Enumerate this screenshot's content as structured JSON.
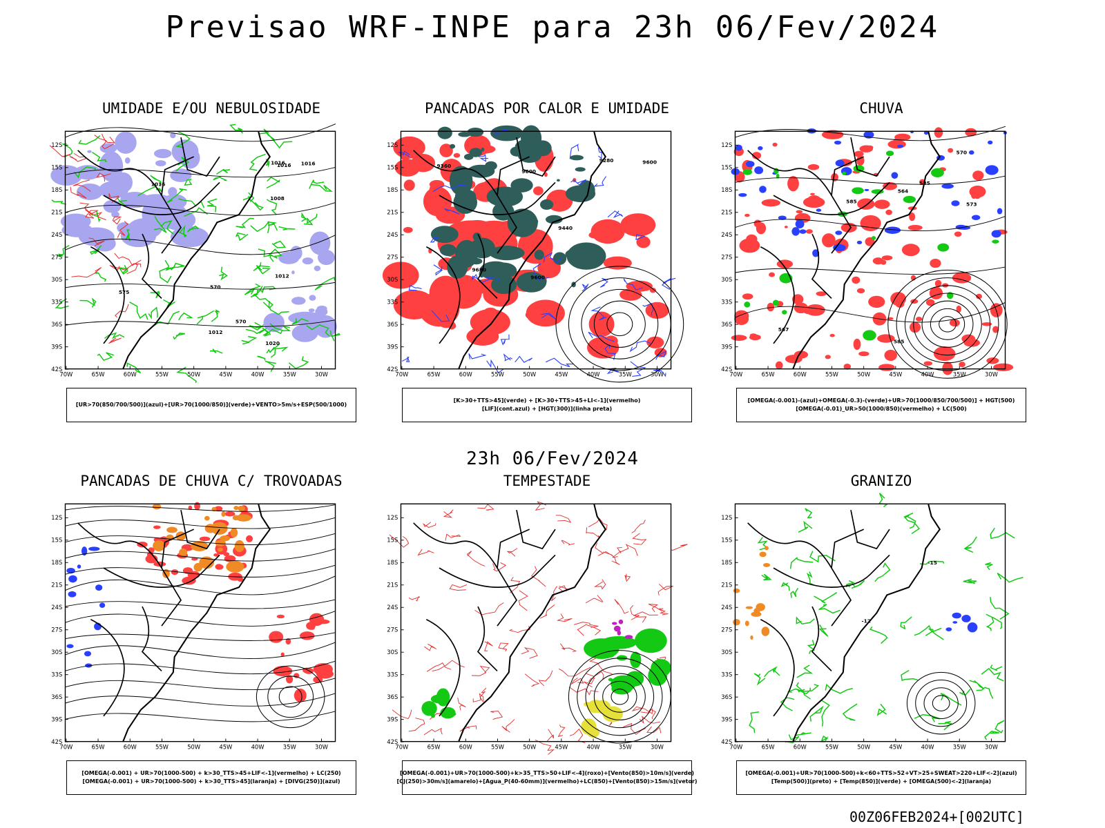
{
  "title": "Previsao WRF-INPE  para 23h 06/Fev/2024",
  "subtitle": "23h 06/Fev/2024",
  "footer": "00Z06FEB2024+[002UTC]",
  "axes": {
    "lat_ticks": [
      "12S",
      "15S",
      "18S",
      "21S",
      "24S",
      "27S",
      "30S",
      "33S",
      "36S",
      "39S",
      "42S"
    ],
    "lon_ticks": [
      "70W",
      "65W",
      "60W",
      "55W",
      "50W",
      "45W",
      "40W",
      "35W",
      "30W"
    ]
  },
  "colors": {
    "blue_fill": "#a9a6f0",
    "green": "#13c913",
    "red": "#ff4040",
    "dark_teal": "#2f5e5a",
    "blue": "#2a40ff",
    "orange": "#f08a24",
    "yellow": "#e6e03a"
  },
  "panels": [
    {
      "title": "UMIDADE E/OU NEBULOSIDADE",
      "legend": [
        "[UR>70(850/700/500)](azul)+[UR>70(1000/850)](verde)+VENTO>5m/s+ESP(500/1000)"
      ],
      "contour_labels": [
        "1016",
        "1016",
        "1016",
        "1012",
        "1008",
        "1012",
        "1016",
        "1020",
        "570",
        "575",
        "570"
      ]
    },
    {
      "title": "PANCADAS POR CALOR E UMIDADE",
      "legend": [
        "[K>30+TTS>45](verde)  +  [K>30+TTS>45+LI<-1](vermelho)",
        "[LIF](cont.azul)  +  [HGT(300)](linha preta)"
      ],
      "contour_labels": [
        "9680",
        "9600",
        "9600",
        "9440",
        "9360",
        "9280",
        "9600"
      ]
    },
    {
      "title": "CHUVA",
      "legend": [
        "[OMEGA(-0.001)-(azul)+OMEGA(-0.3)-(verde)+UR>70(1000/850/700/500)]  +  HGT(500)",
        "[OMEGA(-0.01)_UR>50(1000/850)(vermelho)  +  LC(500)"
      ],
      "contour_labels": [
        "585",
        "585",
        "573",
        "570",
        "567",
        "564",
        "585"
      ]
    },
    {
      "title": "PANCADAS DE CHUVA C/ TROVOADAS",
      "legend": [
        "[OMEGA(-0.001)  +  UR>70(1000-500)  +  k>30_TTS>45+LIF<-1](vermelho)  +  LC(250)",
        "[OMEGA(-0.001)  +  UR>70(1000-500)  +  k>30_TTS>45](laranja)  +  [DIVG(250)](azul)"
      ],
      "contour_labels": []
    },
    {
      "title": "TEMPESTADE",
      "legend": [
        "[OMEGA(-0.001)+UR>70(1000-500)+k>35_TTS>50+LIF<-4](roxo)+[Vento(850)>10m/s](verde)",
        "[CJ(250)>30m/s](amarelo)+[Agua_P(40-60mm)](vermelho)+LC(850)+[Vento(850)>15m/s](vetor)"
      ],
      "contour_labels": []
    },
    {
      "title": "GRANIZO",
      "legend": [
        "[OMEGA(-0.001)+UR>70(1000-500)+k<60+TTS>52+VT>25+SWEAT>220+LIF<-2](azul)",
        "[Temp(500)](preto)  +  [Temp(850)](verde)  +  [OMEGA(500)<-2](laranja)"
      ],
      "contour_labels": [
        "-15",
        "-12"
      ]
    }
  ]
}
